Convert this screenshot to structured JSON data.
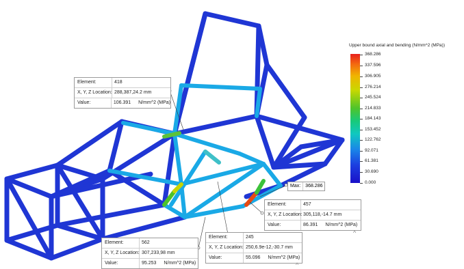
{
  "legend": {
    "title": "Upper bound axial and bending (N/mm^2 (MPa))",
    "ticks": [
      "368.286",
      "337.596",
      "306.905",
      "276.214",
      "245.524",
      "214.833",
      "184.143",
      "153.452",
      "122.762",
      "92.071",
      "61.381",
      "30.690",
      "0.000"
    ]
  },
  "max_label": {
    "label": "Max:",
    "value": "368.286"
  },
  "probes": [
    {
      "element_label": "Element:",
      "element": "418",
      "loc_label": "X, Y, Z Location:",
      "location": "288,387,24.2 mm",
      "value_label": "Value:",
      "value": "106.391",
      "unit": "N/mm^2 (MPa)"
    },
    {
      "element_label": "Element:",
      "element": "457",
      "loc_label": "X, Y, Z Location:",
      "location": "305,118,-14.7 mm",
      "value_label": "Value:",
      "value": "86.391",
      "unit": "N/mm^2 (MPa)"
    },
    {
      "element_label": "Element:",
      "element": "245",
      "loc_label": "X, Y, Z Location:",
      "location": "250,6.9e-12,-30.7 mm",
      "value_label": "Value:",
      "value": "55.096",
      "unit": "N/mm^2 (MPa)"
    },
    {
      "element_label": "Element:",
      "element": "562",
      "loc_label": "X, Y, Z Location:",
      "location": "307,233,98 mm",
      "value_label": "Value:",
      "value": "95.253",
      "unit": "N/mm^2 (MPa)"
    }
  ],
  "colors": {
    "frame": "#1f3ad6",
    "mid": "#1ca6e8",
    "hot": "#e02a1a"
  }
}
